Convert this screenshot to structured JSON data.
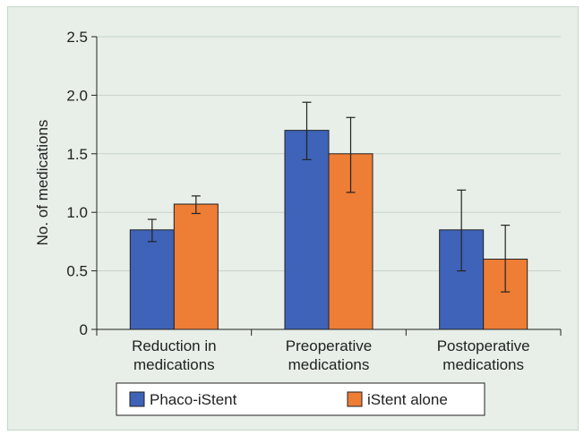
{
  "chart_data": {
    "type": "bar",
    "title": "",
    "ylabel": "No. of medications",
    "xlabel": "",
    "ylim": [
      0,
      2.5
    ],
    "yticks": [
      "0",
      "0.5",
      "1.0",
      "1.5",
      "2.0",
      "2.5"
    ],
    "categories": [
      [
        "Reduction in",
        "medications"
      ],
      [
        "Preoperative",
        "medications"
      ],
      [
        "Postoperative",
        "medications"
      ]
    ],
    "series": [
      {
        "name": "Phaco-iStent",
        "color": "#3e63b8",
        "values": [
          0.85,
          1.7,
          0.85
        ],
        "err_low": [
          0.75,
          1.45,
          0.5
        ],
        "err_high": [
          0.94,
          1.94,
          1.19
        ]
      },
      {
        "name": "iStent alone",
        "color": "#ee7d36",
        "values": [
          1.07,
          1.5,
          0.6
        ],
        "err_low": [
          0.99,
          1.17,
          0.32
        ],
        "err_high": [
          1.14,
          1.81,
          0.89
        ]
      }
    ],
    "grid": true,
    "legend": "bottom",
    "background": "#e7efe8"
  }
}
